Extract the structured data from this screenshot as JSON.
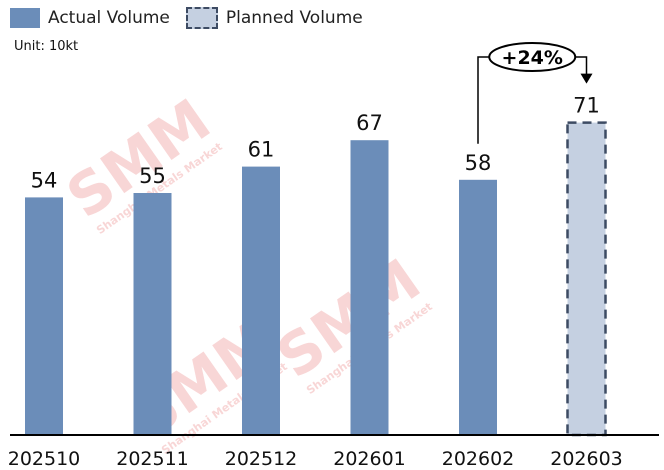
{
  "legend": {
    "actual": "Actual Volume",
    "planned": "Planned Volume"
  },
  "unit": "Unit: 10kt",
  "colors": {
    "actual": "#6b8db9",
    "planned_fill": "#c5d0e1",
    "planned_border": "#3d4b63",
    "watermark": "#f4b6b6"
  },
  "watermark": {
    "logo": "SMM",
    "subtitle": "Shanghai Metals Market"
  },
  "chart_data": {
    "type": "bar",
    "title": "",
    "xlabel": "",
    "ylabel": "",
    "unit": "10kt",
    "categories": [
      "202510",
      "202511",
      "202512",
      "202601",
      "202602",
      "202603"
    ],
    "series": [
      {
        "name": "Actual Volume",
        "values": [
          54,
          55,
          61,
          67,
          58,
          null
        ]
      },
      {
        "name": "Planned Volume",
        "values": [
          null,
          null,
          null,
          null,
          null,
          71
        ]
      }
    ],
    "ylim": [
      0,
      80
    ],
    "grid": false,
    "legend_position": "top-left",
    "annotations": [
      {
        "text": "+24%",
        "from": "202602",
        "to": "202603"
      }
    ]
  }
}
